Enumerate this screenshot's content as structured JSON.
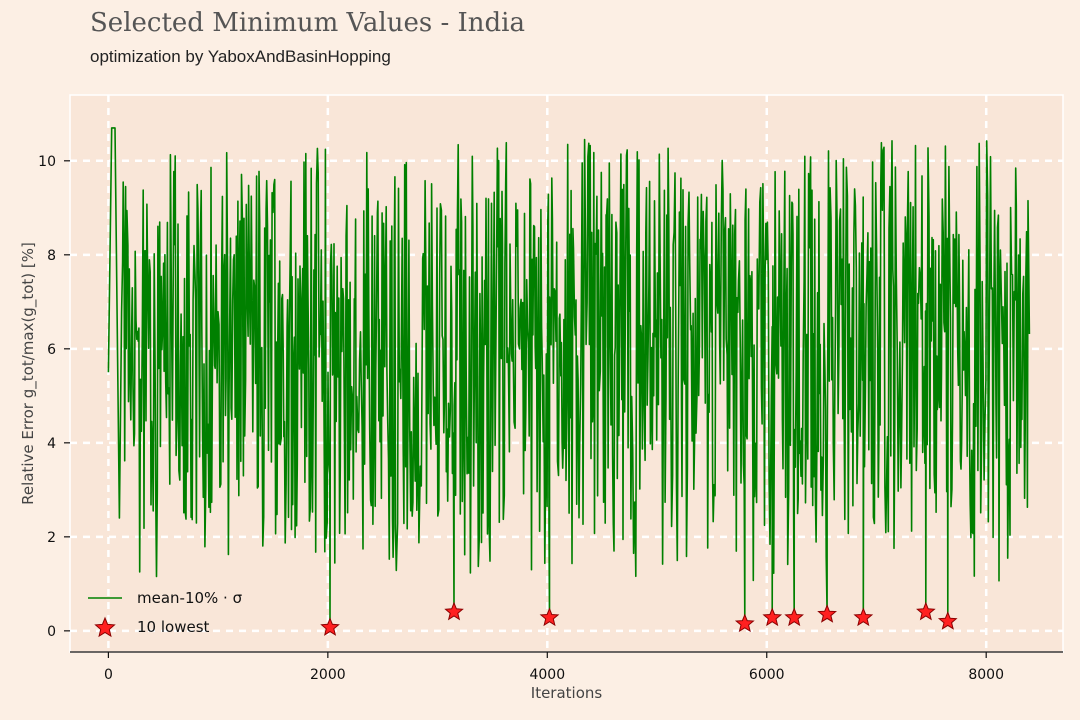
{
  "header": {
    "title": "Selected Minimum Values - India",
    "subtitle": "optimization by YaboxAndBasinHopping"
  },
  "colors": {
    "background": "#fcefe4",
    "plot_background": "#f9e6d8",
    "grid": "#ffffff",
    "series": "#008000",
    "marker": "#ff2020"
  },
  "chart_data": {
    "type": "line",
    "xlabel": "Iterations",
    "ylabel": "Relative Error g_tot/max(g_tot) [%]",
    "xlim": [
      -350,
      8700
    ],
    "ylim": [
      -0.45,
      11.4
    ],
    "x_ticks": [
      0,
      2000,
      4000,
      6000,
      8000
    ],
    "y_ticks": [
      0,
      2,
      4,
      6,
      8,
      10
    ],
    "grid": true,
    "legend": {
      "placement": "bottom-left",
      "entries": [
        {
          "label": "mean-10% · σ",
          "marker": "line"
        },
        {
          "label": "10 lowest",
          "marker": "star"
        }
      ]
    },
    "series": [
      {
        "name": "mean-10% · σ",
        "style": "noisy line",
        "x_range": [
          0,
          8400
        ],
        "start_values": [
          5.5,
          10.7,
          10.7,
          2.4
        ],
        "typical_range": [
          1.0,
          10.5
        ],
        "spikes_to_minimum_at": [
          2020,
          3150,
          4020,
          5800,
          6050,
          6250,
          6550,
          6880,
          7450,
          7650
        ]
      },
      {
        "name": "10 lowest",
        "style": "star markers",
        "points": [
          {
            "x": 2020,
            "y": 0.07
          },
          {
            "x": 3150,
            "y": 0.4
          },
          {
            "x": 4020,
            "y": 0.28
          },
          {
            "x": 5800,
            "y": 0.15
          },
          {
            "x": 6050,
            "y": 0.28
          },
          {
            "x": 6250,
            "y": 0.28
          },
          {
            "x": 6550,
            "y": 0.35
          },
          {
            "x": 6880,
            "y": 0.28
          },
          {
            "x": 7450,
            "y": 0.4
          },
          {
            "x": 7650,
            "y": 0.2
          }
        ]
      }
    ]
  }
}
